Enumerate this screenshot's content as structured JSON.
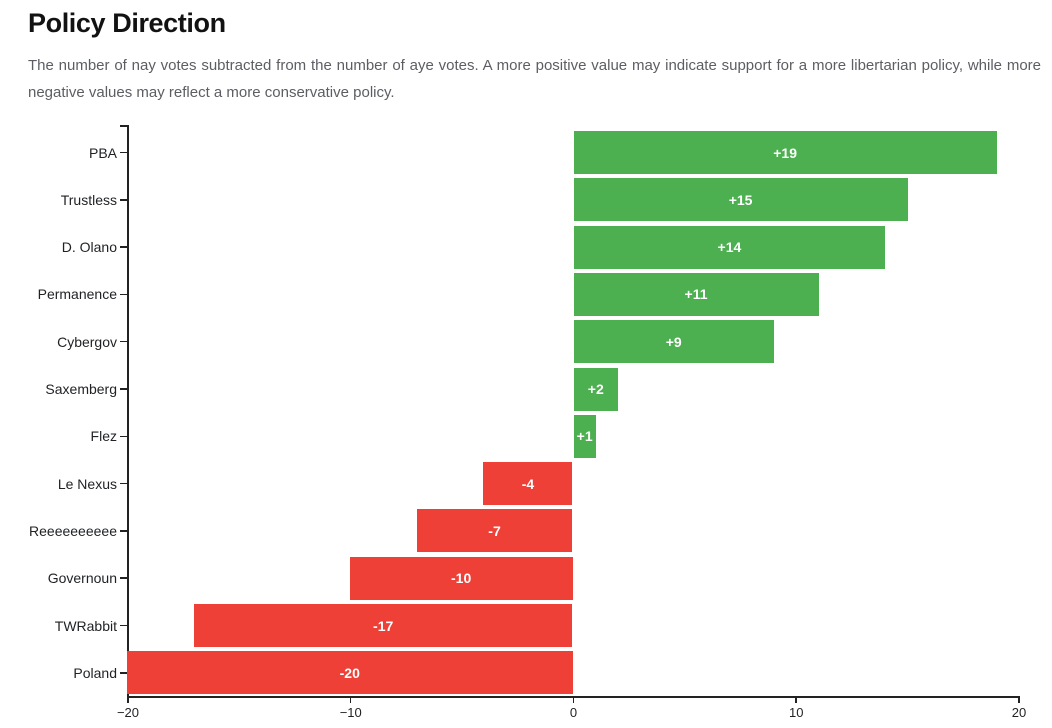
{
  "page": {
    "title": "Policy Direction",
    "subtitle": "The number of nay votes subtracted from the number of aye votes. A more positive value may indicate support for a more libertarian policy, while more negative values may reflect a more conservative policy."
  },
  "colors": {
    "positive_bar": "#4caf50",
    "negative_bar": "#ee4037",
    "axis": "#222222",
    "title_text": "#121212",
    "subtitle_text": "#5c5e63",
    "bar_label_text": "#ffffff"
  },
  "chart_data": {
    "type": "bar",
    "orientation": "horizontal",
    "title": "Policy Direction",
    "xlabel": "",
    "ylabel": "",
    "categories": [
      "PBA",
      "Trustless",
      "D. Olano",
      "Permanence",
      "Cybergov",
      "Saxemberg",
      "Flez",
      "Le Nexus",
      "Reeeeeeeeee",
      "Governoun",
      "TWRabbit",
      "Poland"
    ],
    "values": [
      19,
      15,
      14,
      11,
      9,
      2,
      1,
      -4,
      -7,
      -10,
      -17,
      -20
    ],
    "bar_labels": [
      "+19",
      "+15",
      "+14",
      "+11",
      "+9",
      "+2",
      "+1",
      "-4",
      "-7",
      "-10",
      "-17",
      "-20"
    ],
    "xlim": [
      -20,
      20
    ],
    "x_ticks": [
      -20,
      -10,
      0,
      10,
      20
    ],
    "x_tick_labels": [
      "−20",
      "−10",
      "0",
      "10",
      "20"
    ],
    "grid": false,
    "legend": false,
    "positive_color": "#4caf50",
    "negative_color": "#ee4037"
  }
}
